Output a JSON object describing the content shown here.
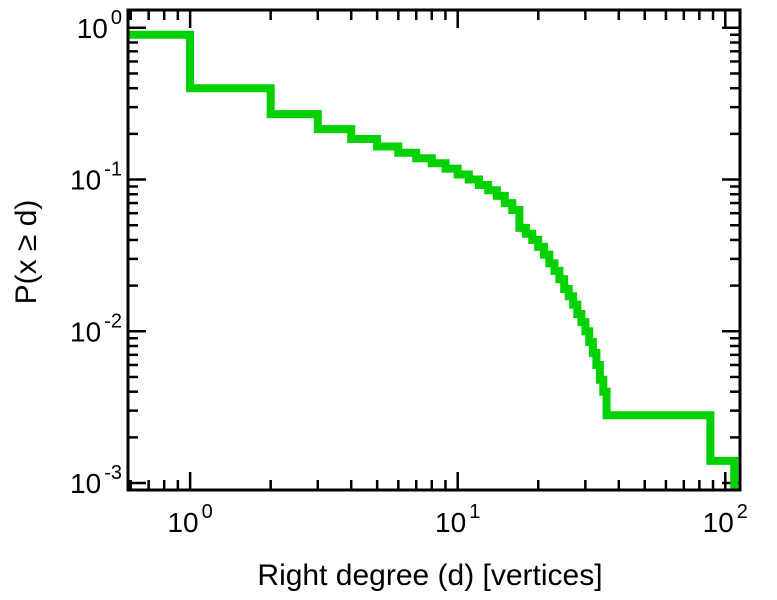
{
  "chart_data": {
    "type": "line",
    "subtype": "ccdf-step",
    "title": "",
    "xlabel": "Right degree (d) [vertices]",
    "ylabel": "P(x ≥ d)",
    "xscale": "log",
    "yscale": "log",
    "xlim": [
      0.586,
      113.5
    ],
    "ylim": [
      0.0009,
      1.31
    ],
    "grid": false,
    "legend": "none",
    "background_color": "#ffffff",
    "axis_color": "#000000",
    "line_color": "#00d100",
    "line_width": 8,
    "x_ticks": [
      {
        "v": 1,
        "base": "10",
        "exp": "0"
      },
      {
        "v": 10,
        "base": "10",
        "exp": "1"
      },
      {
        "v": 100,
        "base": "10",
        "exp": "2"
      }
    ],
    "y_ticks": [
      {
        "v": 1,
        "base": "10",
        "exp": "0"
      },
      {
        "v": 0.1,
        "base": "10",
        "exp": "-1"
      },
      {
        "v": 0.01,
        "base": "10",
        "exp": "-2"
      },
      {
        "v": 0.001,
        "base": "10",
        "exp": "-3"
      }
    ],
    "steps": [
      [
        0.586,
        0.9
      ],
      [
        1,
        0.4
      ],
      [
        2,
        0.27
      ],
      [
        3,
        0.215
      ],
      [
        4,
        0.185
      ],
      [
        5,
        0.165
      ],
      [
        6,
        0.15
      ],
      [
        7,
        0.138
      ],
      [
        8,
        0.128
      ],
      [
        9,
        0.118
      ],
      [
        10,
        0.108
      ],
      [
        11,
        0.1
      ],
      [
        12,
        0.092
      ],
      [
        13,
        0.085
      ],
      [
        14,
        0.078
      ],
      [
        15,
        0.07
      ],
      [
        16,
        0.063
      ],
      [
        17,
        0.048
      ],
      [
        18,
        0.044
      ],
      [
        19,
        0.04
      ],
      [
        20,
        0.036
      ],
      [
        21,
        0.032
      ],
      [
        22,
        0.028
      ],
      [
        23,
        0.025
      ],
      [
        24,
        0.022
      ],
      [
        25,
        0.019
      ],
      [
        26,
        0.017
      ],
      [
        27,
        0.015
      ],
      [
        28,
        0.013
      ],
      [
        29,
        0.0115
      ],
      [
        30,
        0.01
      ],
      [
        31,
        0.0085
      ],
      [
        32,
        0.0072
      ],
      [
        33,
        0.006
      ],
      [
        34,
        0.0048
      ],
      [
        35,
        0.004
      ],
      [
        36,
        0.0028
      ],
      [
        88,
        0.0014
      ]
    ],
    "tail_end": 108
  }
}
